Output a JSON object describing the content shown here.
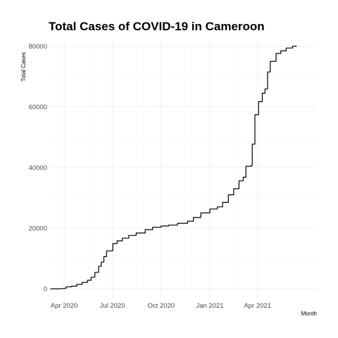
{
  "chart_data": {
    "type": "line",
    "title": "Total Cases of COVID-19 in Cameroon",
    "xlabel": "Month",
    "ylabel": "Total Cases",
    "x_ticks": [
      {
        "label": "Apr 2020",
        "date": "2020-04-01"
      },
      {
        "label": "Jul 2020",
        "date": "2020-07-01"
      },
      {
        "label": "Oct 2020",
        "date": "2020-10-01"
      },
      {
        "label": "Jan 2021",
        "date": "2021-01-01"
      },
      {
        "label": "Apr 2021",
        "date": "2021-04-01"
      }
    ],
    "y_ticks": [
      0,
      20000,
      40000,
      60000,
      80000
    ],
    "xlim": [
      "2020-03-04",
      "2021-07-22"
    ],
    "ylim": [
      -3000,
      82000
    ],
    "grid": true,
    "line_color": "#000000",
    "series": [
      {
        "points": [
          [
            "2020-03-06",
            1
          ],
          [
            "2020-03-25",
            56
          ],
          [
            "2020-04-01",
            193
          ],
          [
            "2020-04-05",
            650
          ],
          [
            "2020-04-15",
            848
          ],
          [
            "2020-04-25",
            1430
          ],
          [
            "2020-05-05",
            2077
          ],
          [
            "2020-05-15",
            2800
          ],
          [
            "2020-05-22",
            3800
          ],
          [
            "2020-05-29",
            5400
          ],
          [
            "2020-06-05",
            7400
          ],
          [
            "2020-06-10",
            8800
          ],
          [
            "2020-06-15",
            10600
          ],
          [
            "2020-06-20",
            12500
          ],
          [
            "2020-07-01",
            12600
          ],
          [
            "2020-07-02",
            14900
          ],
          [
            "2020-07-10",
            15800
          ],
          [
            "2020-07-20",
            16700
          ],
          [
            "2020-08-01",
            17600
          ],
          [
            "2020-08-15",
            18400
          ],
          [
            "2020-09-01",
            19500
          ],
          [
            "2020-09-15",
            20300
          ],
          [
            "2020-10-01",
            20700
          ],
          [
            "2020-10-15",
            21000
          ],
          [
            "2020-11-01",
            21600
          ],
          [
            "2020-11-20",
            22300
          ],
          [
            "2020-12-01",
            23500
          ],
          [
            "2020-12-15",
            25000
          ],
          [
            "2021-01-01",
            26300
          ],
          [
            "2021-01-15",
            27000
          ],
          [
            "2021-01-25",
            28500
          ],
          [
            "2021-02-05",
            31000
          ],
          [
            "2021-02-15",
            33000
          ],
          [
            "2021-02-25",
            35600
          ],
          [
            "2021-03-05",
            36800
          ],
          [
            "2021-03-10",
            40400
          ],
          [
            "2021-03-20",
            40600
          ],
          [
            "2021-03-22",
            47700
          ],
          [
            "2021-03-27",
            57400
          ],
          [
            "2021-04-03",
            61700
          ],
          [
            "2021-04-10",
            64500
          ],
          [
            "2021-04-15",
            65900
          ],
          [
            "2021-04-20",
            71500
          ],
          [
            "2021-04-25",
            75000
          ],
          [
            "2021-05-06",
            77600
          ],
          [
            "2021-05-15",
            78500
          ],
          [
            "2021-05-25",
            79400
          ],
          [
            "2021-06-06",
            80000
          ]
        ]
      }
    ]
  }
}
